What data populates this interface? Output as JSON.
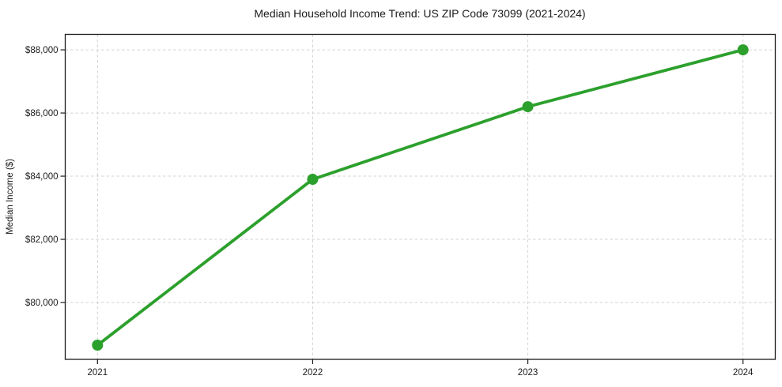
{
  "chart_data": {
    "type": "line",
    "title": "Median Household Income Trend: US ZIP Code 73099 (2021-2024)",
    "xlabel": "",
    "ylabel": "Median Income ($)",
    "x": [
      2021,
      2022,
      2023,
      2024
    ],
    "series": [
      {
        "name": "Median Household Income",
        "values": [
          78650,
          83900,
          86200,
          88000
        ]
      }
    ],
    "xticks": [
      2021,
      2022,
      2023,
      2024
    ],
    "xtick_labels": [
      "2021",
      "2022",
      "2023",
      "2024"
    ],
    "yticks": [
      80000,
      82000,
      84000,
      86000,
      88000
    ],
    "ytick_labels": [
      "$80,000",
      "$82,000",
      "$84,000",
      "$86,000",
      "$88,000"
    ],
    "xlim": [
      2020.85,
      2024.15
    ],
    "ylim": [
      78200,
      88490
    ],
    "grid": true,
    "grid_style": "dashed",
    "legend": false,
    "marker": "circle",
    "colors": {
      "line": "#2ca02c",
      "marker": "#2ca02c",
      "grid": "#d2d2d2",
      "spine": "#1a1a1a",
      "text": "#1a1a1a",
      "background": "#ffffff"
    }
  }
}
